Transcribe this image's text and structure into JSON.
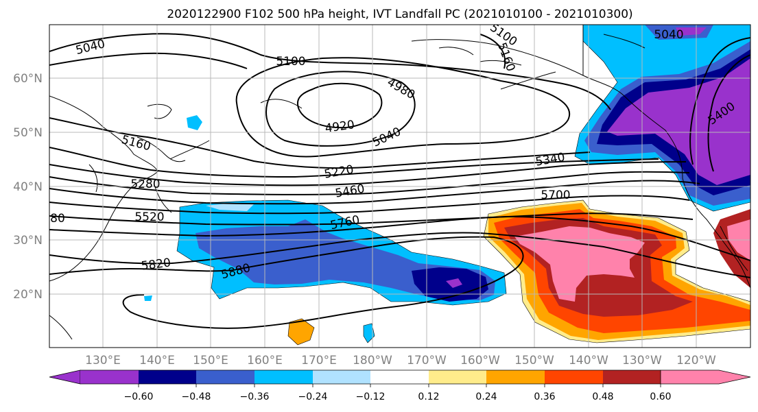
{
  "title": "2020122900 F102 500 hPa height, IVT Landfall PC (2021010100 - 2021010300)",
  "lat_labels": [
    "60°N",
    "50°N",
    "40°N",
    "30°N",
    "20°N"
  ],
  "lon_labels": [
    "130°E",
    "140°E",
    "150°E",
    "160°E",
    "170°E",
    "180°W",
    "170°W",
    "160°W",
    "150°W",
    "140°W",
    "130°W",
    "120°W"
  ],
  "colorbar": {
    "ticks": [
      "−0.60",
      "−0.48",
      "−0.36",
      "−0.24",
      "−0.12",
      "0.12",
      "0.24",
      "0.36",
      "0.48",
      "0.60"
    ],
    "colors": [
      "#9932cc",
      "#00008b",
      "#3a5fcd",
      "#00bfff",
      "#b0e2ff",
      "#ffffff",
      "#ffec8b",
      "#ffa500",
      "#ff4500",
      "#b22222",
      "#ff82ab"
    ]
  },
  "contour_labels": [
    "5040",
    "5100",
    "5160",
    "5040",
    "5100",
    "4980",
    "4920",
    "5040",
    "5160",
    "5220",
    "5280",
    "5340",
    "5400",
    "5460",
    "5520",
    "80",
    "5700",
    "5760",
    "5820",
    "5880"
  ],
  "chart_data": {
    "type": "heatmap",
    "title": "2020122900 F102 500 hPa height, IVT Landfall PC (2021010100 - 2021010300)",
    "fill_variable": "IVT Landfall PC",
    "contour_variable": "500 hPa height",
    "contour_levels": [
      4920,
      4980,
      5040,
      5100,
      5160,
      5220,
      5280,
      5340,
      5400,
      5460,
      5520,
      5700,
      5760,
      5820,
      5880
    ],
    "color_levels": [
      -0.6,
      -0.48,
      -0.36,
      -0.24,
      -0.12,
      0.12,
      0.24,
      0.36,
      0.48,
      0.6
    ],
    "lat_range": [
      10,
      70
    ],
    "lon_range": [
      120,
      250
    ],
    "grid": true,
    "colorbar_position": "bottom"
  }
}
